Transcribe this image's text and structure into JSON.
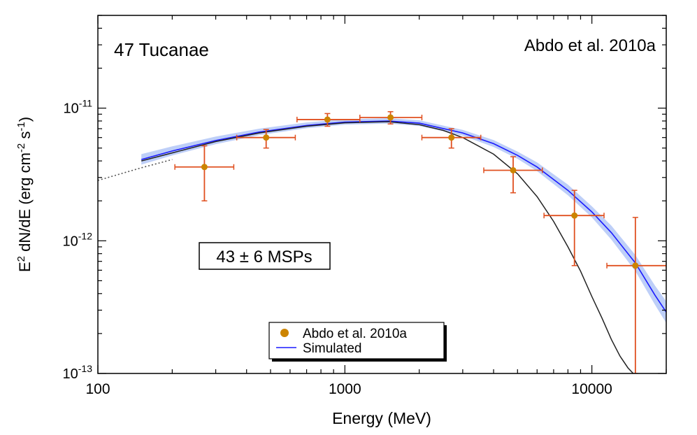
{
  "chart_data": {
    "type": "scatter",
    "title": "47 Tucanae",
    "reference": "Abdo et al. 2010a",
    "annotation": "43 ± 6 MSPs",
    "xlabel": "Energy (MeV)",
    "ylabel_parts": [
      "E",
      "2",
      " dN/dE (erg cm",
      "-2",
      " s",
      "-1",
      ")"
    ],
    "x_scale": "log",
    "y_scale": "log",
    "xlim": [
      100,
      20000
    ],
    "ylim": [
      1e-13,
      5e-11
    ],
    "x_ticks": [
      {
        "value": 100,
        "label": "100"
      },
      {
        "value": 1000,
        "label": "1000"
      },
      {
        "value": 10000,
        "label": "10000"
      }
    ],
    "y_ticks": [
      {
        "value": 1e-13,
        "base": "10",
        "exp": "-13"
      },
      {
        "value": 1e-12,
        "base": "10",
        "exp": "-12"
      },
      {
        "value": 1e-11,
        "base": "10",
        "exp": "-11"
      }
    ],
    "legend": {
      "placement": "bottom-center",
      "entries": [
        {
          "label": "Abdo et al. 2010a",
          "marker": "circle",
          "color": "#cc8400"
        },
        {
          "label": "Simulated",
          "marker": "line",
          "color": "#1a1aff"
        }
      ]
    },
    "series": [
      {
        "name": "Abdo et al. 2010a",
        "kind": "points",
        "color": "#cc8400",
        "errorbar_color": "#e05020",
        "points": [
          {
            "x": 270,
            "y": 3.6e-12,
            "xerr": [
              205,
              355
            ],
            "yerr": [
              2e-12,
              5.2e-12
            ]
          },
          {
            "x": 480,
            "y": 6e-12,
            "xerr": [
              365,
              630
            ],
            "yerr": [
              5e-12,
              6.9e-12
            ]
          },
          {
            "x": 850,
            "y": 8.2e-12,
            "xerr": [
              640,
              1150
            ],
            "yerr": [
              7.3e-12,
              9.1e-12
            ]
          },
          {
            "x": 1530,
            "y": 8.5e-12,
            "xerr": [
              1150,
              2050
            ],
            "yerr": [
              7.6e-12,
              9.4e-12
            ]
          },
          {
            "x": 2700,
            "y": 6e-12,
            "xerr": [
              2050,
              3550
            ],
            "yerr": [
              5e-12,
              7e-12
            ]
          },
          {
            "x": 4800,
            "y": 3.4e-12,
            "xerr": [
              3650,
              6300
            ],
            "yerr": [
              2.3e-12,
              4.3e-12
            ]
          },
          {
            "x": 8500,
            "y": 1.55e-12,
            "xerr": [
              6400,
              11200
            ],
            "yerr": [
              6.5e-13,
              2.4e-12
            ]
          },
          {
            "x": 15000,
            "y": 6.5e-13,
            "xerr": [
              11500,
              20000
            ],
            "yerr": [
              1e-13,
              1.5e-12
            ]
          }
        ]
      },
      {
        "name": "Simulated",
        "kind": "line",
        "color": "#1a1aff",
        "band_color": "#a8bff5",
        "x": [
          150,
          200,
          300,
          450,
          700,
          1000,
          1500,
          2000,
          3000,
          4000,
          5000,
          6000,
          8000,
          10000,
          12000,
          15000,
          18000,
          20000
        ],
        "y": [
          4.1e-12,
          4.75e-12,
          5.7e-12,
          6.6e-12,
          7.4e-12,
          7.85e-12,
          8e-12,
          7.7e-12,
          6.5e-12,
          5.4e-12,
          4.4e-12,
          3.6e-12,
          2.4e-12,
          1.65e-12,
          1.15e-12,
          6.8e-13,
          3.9e-13,
          2.9e-13
        ],
        "band_lower": [
          3.75e-12,
          4.4e-12,
          5.35e-12,
          6.25e-12,
          7.05e-12,
          7.5e-12,
          7.65e-12,
          7.35e-12,
          6.2e-12,
          5.1e-12,
          4.15e-12,
          3.35e-12,
          2.2e-12,
          1.5e-12,
          1.02e-12,
          5.9e-13,
          3.3e-13,
          2.4e-13
        ],
        "band_upper": [
          4.5e-12,
          5.15e-12,
          6.1e-12,
          7e-12,
          7.8e-12,
          8.25e-12,
          8.4e-12,
          8.1e-12,
          6.85e-12,
          5.75e-12,
          4.7e-12,
          3.9e-12,
          2.65e-12,
          1.82e-12,
          1.3e-12,
          7.8e-13,
          4.6e-13,
          3.5e-13
        ]
      },
      {
        "name": "",
        "kind": "line",
        "color": "#222222",
        "x": [
          150,
          200,
          300,
          450,
          700,
          1000,
          1500,
          2000,
          2500,
          3000,
          4000,
          5000,
          6000,
          7000,
          8000,
          9000,
          10000,
          11000,
          12000,
          13000,
          14000,
          14700
        ],
        "y": [
          4e-12,
          4.6e-12,
          5.6e-12,
          6.5e-12,
          7.3e-12,
          7.75e-12,
          7.9e-12,
          7.5e-12,
          6.8e-12,
          6e-12,
          4.5e-12,
          3.2e-12,
          2.15e-12,
          1.4e-12,
          9e-13,
          5.9e-13,
          3.8e-13,
          2.6e-13,
          1.8e-13,
          1.35e-13,
          1.1e-13,
          1e-13
        ]
      },
      {
        "name": "",
        "kind": "dotted-line",
        "color": "#555555",
        "x": [
          100,
          150,
          200
        ],
        "y": [
          2.85e-12,
          3.55e-12,
          4.1e-12
        ]
      }
    ]
  }
}
